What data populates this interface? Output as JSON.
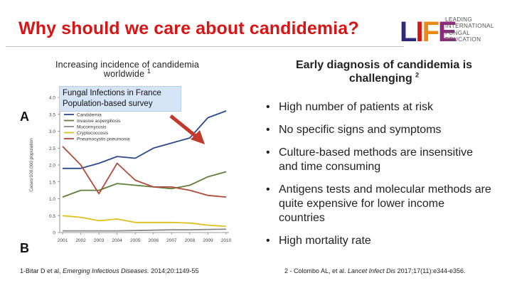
{
  "slide": {
    "title": "Why should we care about candidemia?",
    "logo": {
      "mark_letters": [
        "L",
        "I",
        "F",
        "E"
      ],
      "mark_colors": [
        "#2b2b7a",
        "#d81515",
        "#e88a1a",
        "#8d2a7e"
      ],
      "lines": [
        "LEADING",
        "INTERNATIONAL",
        "FUNGAL",
        "EDUCATION"
      ]
    },
    "left": {
      "heading_line1": "Increasing incidence of candidemia",
      "heading_line2": "worldwide",
      "heading_sup": "1",
      "callout_line1": "Fungal Infections in France",
      "callout_line2": "Population-based survey",
      "reference_prefix": "1-Bitar D et al, ",
      "reference_journal": "Emerging Infectious Diseases.",
      "reference_suffix": " 2014;20:1149-55"
    },
    "right": {
      "heading_line1": "Early diagnosis of candidemia is",
      "heading_line2": "challenging",
      "heading_sup": "2",
      "bullets": [
        "High number of patients at risk",
        "No specific signs and symptoms",
        "Culture-based methods are insensitive and time consuming",
        "Antigens tests and molecular methods are quite expensive for lower income countries",
        "High mortality rate"
      ],
      "bullet_char": "•",
      "reference_prefix": "2 - Colombo AL, et al. ",
      "reference_journal": "Lancet Infect Dis",
      "reference_suffix": " 2017;17(11):e344-e356."
    }
  },
  "chart_data": {
    "type": "line",
    "panel_label_top": "A",
    "panel_label_bottom": "B",
    "ylabel": "Cases/100,000 population",
    "ylim": [
      0,
      4.0
    ],
    "yticks": [
      "0",
      "0.5",
      "1.0",
      "1.5",
      "2.0",
      "2.5",
      "3.0",
      "3.5",
      "4.0"
    ],
    "categories": [
      "2001",
      "2002",
      "2003",
      "2004",
      "2005",
      "2006",
      "2007",
      "2008",
      "2009",
      "2010"
    ],
    "series": [
      {
        "name": "Candidemia",
        "color": "#2f4a8c",
        "values": [
          1.9,
          1.9,
          2.05,
          2.25,
          2.2,
          2.5,
          2.65,
          2.8,
          3.4,
          3.6
        ]
      },
      {
        "name": "Invasive aspergillosis",
        "color": "#5f7f3a",
        "values": [
          1.05,
          1.25,
          1.25,
          1.45,
          1.4,
          1.35,
          1.3,
          1.4,
          1.65,
          1.8
        ]
      },
      {
        "name": "Mucormycosis",
        "color": "#8a8a8a",
        "values": [
          0.05,
          0.05,
          0.05,
          0.05,
          0.06,
          0.07,
          0.08,
          0.08,
          0.09,
          0.1
        ]
      },
      {
        "name": "Cryptococcosis",
        "color": "#e0c020",
        "values": [
          0.5,
          0.45,
          0.35,
          0.4,
          0.3,
          0.3,
          0.3,
          0.28,
          0.22,
          0.18
        ]
      },
      {
        "name": "Pneumocystis pneumonia",
        "color": "#b04a3a",
        "values": [
          2.55,
          2.0,
          1.15,
          2.05,
          1.55,
          1.35,
          1.35,
          1.25,
          1.1,
          1.05
        ]
      }
    ],
    "legend_position": "top-left",
    "annotation": "arrow pointing to rising candidemia curve",
    "arrow_color": "#c0392b"
  }
}
